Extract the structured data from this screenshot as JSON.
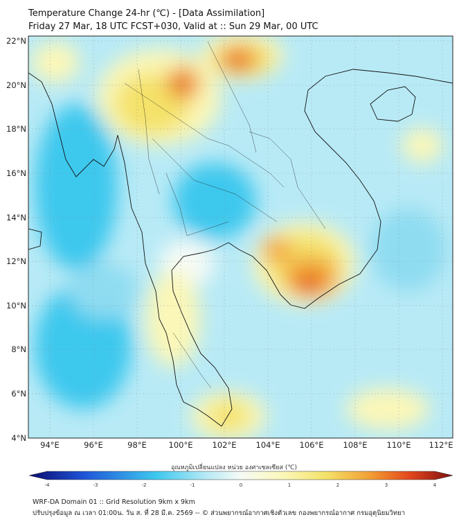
{
  "header": {
    "title": "Temperature Change 24-hr (℃) - [Data Assimilation]",
    "subtitle": "Friday 27 Mar, 18 UTC FCST+030, Valid at :: Sun 29 Mar, 00 UTC"
  },
  "map": {
    "lon_ticks": [
      "94°E",
      "96°E",
      "98°E",
      "100°E",
      "102°E",
      "104°E",
      "106°E",
      "108°E",
      "110°E",
      "112°E"
    ],
    "lat_ticks": [
      "22°N",
      "20°N",
      "18°N",
      "16°N",
      "14°N",
      "12°N",
      "10°N",
      "8°N",
      "6°N",
      "4°N"
    ],
    "lon_range": [
      93,
      112.5
    ],
    "lat_range": [
      4,
      22.2
    ]
  },
  "colorbar": {
    "label": "อุณหภูมิเปลี่ยนแปลง หน่วย องศาเซลเซียส (℃)",
    "ticks": [
      "-4",
      "-3",
      "-2",
      "-1",
      "0",
      "1",
      "2",
      "3",
      "4"
    ],
    "range": [
      -4,
      4
    ],
    "colors": {
      "dark_blue": "#0a0a6e",
      "blue": "#1f55d8",
      "cyan": "#3ec8ee",
      "light_cyan": "#b8eaf6",
      "white": "#f6fbf6",
      "light_yellow": "#fbf7b8",
      "yellow": "#f4e26a",
      "orange": "#f2a235",
      "red": "#e2461c",
      "dark_red": "#7e0f0f"
    }
  },
  "footer": {
    "line1": "WRF-DA Domain 01 :: Grid Resolution 9km x 9km",
    "line2": "ปรับปรุงข้อมูล ณ เวลา 01:00น. วัน ส. ที่ 28 มี.ค. 2569 -- © ส่วนพยากรณ์อากาศเชิงตัวเลข กองพยากรณ์อากาศ กรมอุตุนิยมวิทยา"
  }
}
